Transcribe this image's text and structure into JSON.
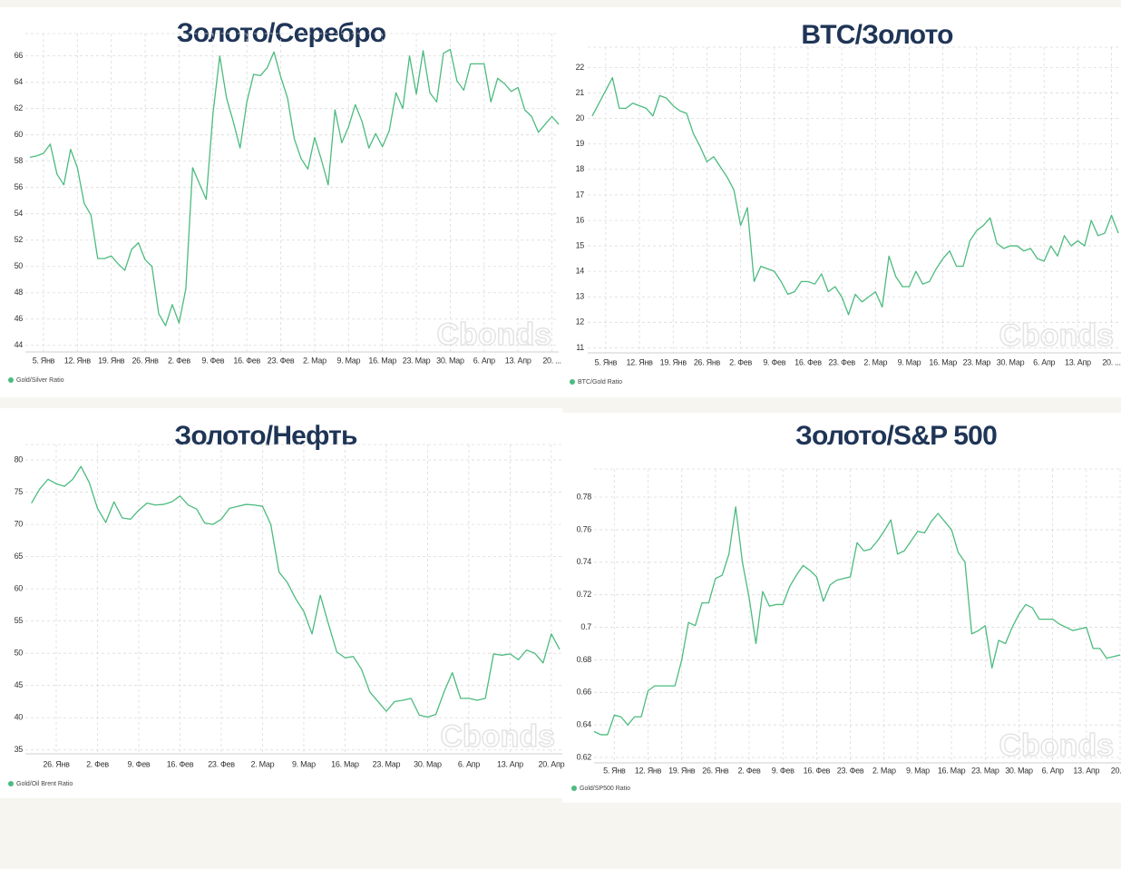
{
  "chart_data": [
    {
      "type": "line",
      "title": "Золото/Серебро",
      "watermark": "Cbonds",
      "grid": true,
      "ylim": [
        43.5,
        67.7
      ],
      "yticks": [
        44,
        46,
        48,
        50,
        52,
        54,
        56,
        58,
        60,
        62,
        64,
        66
      ],
      "categories": [
        null,
        null,
        "5. Янв",
        null,
        null,
        null,
        null,
        "12. Янв",
        null,
        null,
        null,
        null,
        "19. Янв",
        null,
        null,
        null,
        null,
        "26. Янв",
        null,
        null,
        null,
        null,
        "2. Фев",
        null,
        null,
        null,
        null,
        "9. Фев",
        null,
        null,
        null,
        null,
        "16. Фев",
        null,
        null,
        null,
        null,
        "23. Фев",
        null,
        null,
        null,
        null,
        "2. Мар",
        null,
        null,
        null,
        null,
        "9. Мар",
        null,
        null,
        null,
        null,
        "16. Мар",
        null,
        null,
        null,
        null,
        "23. Мар",
        null,
        null,
        null,
        null,
        "30. Мар",
        null,
        null,
        null,
        null,
        "6. Апр",
        null,
        null,
        null,
        null,
        "13. Апр",
        null,
        null,
        null,
        null,
        "20. ...",
        null
      ],
      "series": [
        {
          "name": "Gold/Silver Ratio",
          "color": "#4cbb7f",
          "values": [
            58.3,
            58.4,
            58.6,
            59.3,
            57.0,
            56.2,
            58.9,
            57.5,
            54.8,
            53.9,
            50.6,
            50.6,
            50.8,
            50.2,
            49.7,
            51.3,
            51.8,
            50.5,
            50.0,
            46.4,
            45.5,
            47.1,
            45.7,
            48.3,
            57.5,
            56.3,
            55.1,
            61.6,
            66.0,
            62.8,
            61.0,
            59.0,
            62.5,
            64.6,
            64.5,
            65.1,
            66.3,
            64.4,
            62.8,
            59.7,
            58.2,
            57.4,
            59.8,
            58.1,
            56.2,
            61.9,
            59.4,
            60.6,
            62.3,
            61.0,
            59.0,
            60.1,
            59.1,
            60.3,
            63.2,
            62.0,
            66.0,
            63.1,
            66.4,
            63.2,
            62.5,
            66.2,
            66.5,
            64.1,
            63.4,
            65.4,
            65.4,
            65.4,
            62.5,
            64.3,
            63.9,
            63.3,
            63.6,
            61.9,
            61.4,
            60.2,
            60.8,
            61.4,
            60.8
          ]
        }
      ]
    },
    {
      "type": "line",
      "title": "BTC/Золото",
      "watermark": "Cbonds",
      "grid": true,
      "ylim": [
        10.8,
        22.8
      ],
      "yticks": [
        11,
        12,
        13,
        14,
        15,
        16,
        17,
        18,
        19,
        20,
        21,
        22
      ],
      "categories": [
        null,
        null,
        "5. Янв",
        null,
        null,
        null,
        null,
        "12. Янв",
        null,
        null,
        null,
        null,
        "19. Янв",
        null,
        null,
        null,
        null,
        "26. Янв",
        null,
        null,
        null,
        null,
        "2. Фев",
        null,
        null,
        null,
        null,
        "9. Фев",
        null,
        null,
        null,
        null,
        "16. Фев",
        null,
        null,
        null,
        null,
        "23. Фев",
        null,
        null,
        null,
        null,
        "2. Мар",
        null,
        null,
        null,
        null,
        "9. Мар",
        null,
        null,
        null,
        null,
        "16. Мар",
        null,
        null,
        null,
        null,
        "23. Мар",
        null,
        null,
        null,
        null,
        "30. Мар",
        null,
        null,
        null,
        null,
        "6. Апр",
        null,
        null,
        null,
        null,
        "13. Апр",
        null,
        null,
        null,
        null,
        "20. ...",
        null
      ],
      "series": [
        {
          "name": "BTC/Gold Ratio",
          "color": "#4cbb7f",
          "values": [
            20.1,
            20.6,
            21.1,
            21.6,
            20.4,
            20.4,
            20.6,
            20.5,
            20.4,
            20.1,
            20.9,
            20.8,
            20.5,
            20.3,
            20.2,
            19.4,
            18.9,
            18.3,
            18.5,
            18.1,
            17.7,
            17.2,
            15.8,
            16.5,
            13.6,
            14.2,
            14.1,
            14.0,
            13.6,
            13.1,
            13.2,
            13.6,
            13.6,
            13.5,
            13.9,
            13.2,
            13.4,
            13.0,
            12.3,
            13.1,
            12.8,
            13.0,
            13.2,
            12.6,
            14.6,
            13.8,
            13.4,
            13.4,
            14.0,
            13.5,
            13.6,
            14.1,
            14.5,
            14.8,
            14.2,
            14.2,
            15.2,
            15.6,
            15.8,
            16.1,
            15.1,
            14.9,
            15.0,
            15.0,
            14.8,
            14.9,
            14.5,
            14.4,
            15.0,
            14.6,
            15.4,
            15.0,
            15.2,
            15.0,
            16.0,
            15.4,
            15.5,
            16.2,
            15.5
          ]
        }
      ]
    },
    {
      "type": "line",
      "title": "Золото/Нефть",
      "watermark": "Cbonds",
      "grid": true,
      "ylim": [
        34.4,
        82.4
      ],
      "yticks": [
        35,
        40,
        45,
        50,
        55,
        60,
        65,
        70,
        75,
        80
      ],
      "categories": [
        null,
        null,
        null,
        "26. Янв",
        null,
        null,
        null,
        null,
        "2. Фев",
        null,
        null,
        null,
        null,
        "9. Фев",
        null,
        null,
        null,
        null,
        "16. Фев",
        null,
        null,
        null,
        null,
        "23. Фев",
        null,
        null,
        null,
        null,
        "2. Мар",
        null,
        null,
        null,
        null,
        "9. Мар",
        null,
        null,
        null,
        null,
        "16. Мар",
        null,
        null,
        null,
        null,
        "23. Мар",
        null,
        null,
        null,
        null,
        "30. Мар",
        null,
        null,
        null,
        null,
        "6. Апр",
        null,
        null,
        null,
        null,
        "13. Апр",
        null,
        null,
        null,
        null,
        "20. Апр",
        null
      ],
      "series": [
        {
          "name": "Gold/Oil Brent Ratio",
          "color": "#4cbb7f",
          "values": [
            73.3,
            75.5,
            77.0,
            76.3,
            75.9,
            77.0,
            79.0,
            76.5,
            72.5,
            70.3,
            73.5,
            71.0,
            70.8,
            72.2,
            73.3,
            73.0,
            73.1,
            73.5,
            74.4,
            73.0,
            72.4,
            70.2,
            70.0,
            70.8,
            72.5,
            72.8,
            73.1,
            73.0,
            72.8,
            70.0,
            62.6,
            61.0,
            58.5,
            56.5,
            53.0,
            59.0,
            54.5,
            50.2,
            49.3,
            49.5,
            47.5,
            44.0,
            42.5,
            41.0,
            42.5,
            42.7,
            43.0,
            40.4,
            40.1,
            40.5,
            44.0,
            47.0,
            43.0,
            43.0,
            42.7,
            43.0,
            49.9,
            49.7,
            49.9,
            49.0,
            50.5,
            50.0,
            48.5,
            53.0,
            50.6
          ]
        }
      ]
    },
    {
      "type": "line",
      "title": "Золото/S&P 500",
      "watermark": "Cbonds",
      "grid": true,
      "ylim": [
        0.6167,
        0.7973
      ],
      "yticks": [
        0.62,
        0.64,
        0.66,
        0.68,
        0.7,
        0.72,
        0.74,
        0.76,
        0.78
      ],
      "categories": [
        null,
        null,
        null,
        "5. Янв",
        null,
        null,
        null,
        null,
        "12. Янв",
        null,
        null,
        null,
        null,
        "19. Янв",
        null,
        null,
        null,
        null,
        "26. Янв",
        null,
        null,
        null,
        null,
        "2. Фев",
        null,
        null,
        null,
        null,
        "9. Фев",
        null,
        null,
        null,
        null,
        "16. Фев",
        null,
        null,
        null,
        null,
        "23. Фев",
        null,
        null,
        null,
        null,
        "2. Мар",
        null,
        null,
        null,
        null,
        "9. Мар",
        null,
        null,
        null,
        null,
        "16. Мар",
        null,
        null,
        null,
        null,
        "23. Мар",
        null,
        null,
        null,
        null,
        "30. Мар",
        null,
        null,
        null,
        null,
        "6. Апр",
        null,
        null,
        null,
        null,
        "13. Апр",
        null,
        null,
        null,
        null,
        "20. ..."
      ],
      "series": [
        {
          "name": "Gold/SP500 Ratio",
          "color": "#4cbb7f",
          "values": [
            0.636,
            0.634,
            0.634,
            0.646,
            0.645,
            0.64,
            0.645,
            0.645,
            0.661,
            0.664,
            0.664,
            0.664,
            0.664,
            0.68,
            0.703,
            0.701,
            0.715,
            0.715,
            0.73,
            0.732,
            0.745,
            0.774,
            0.74,
            0.718,
            0.69,
            0.722,
            0.713,
            0.714,
            0.714,
            0.725,
            0.732,
            0.738,
            0.735,
            0.731,
            0.716,
            0.726,
            0.729,
            0.73,
            0.731,
            0.752,
            0.747,
            0.748,
            0.753,
            0.759,
            0.766,
            0.745,
            0.747,
            0.753,
            0.759,
            0.758,
            0.765,
            0.77,
            0.765,
            0.76,
            0.746,
            0.74,
            0.696,
            0.698,
            0.701,
            0.675,
            0.692,
            0.69,
            0.7,
            0.708,
            0.714,
            0.712,
            0.705,
            0.705,
            0.705,
            0.702,
            0.7,
            0.698,
            0.699,
            0.7,
            0.687,
            0.687,
            0.681,
            0.682,
            0.683
          ]
        }
      ]
    }
  ]
}
